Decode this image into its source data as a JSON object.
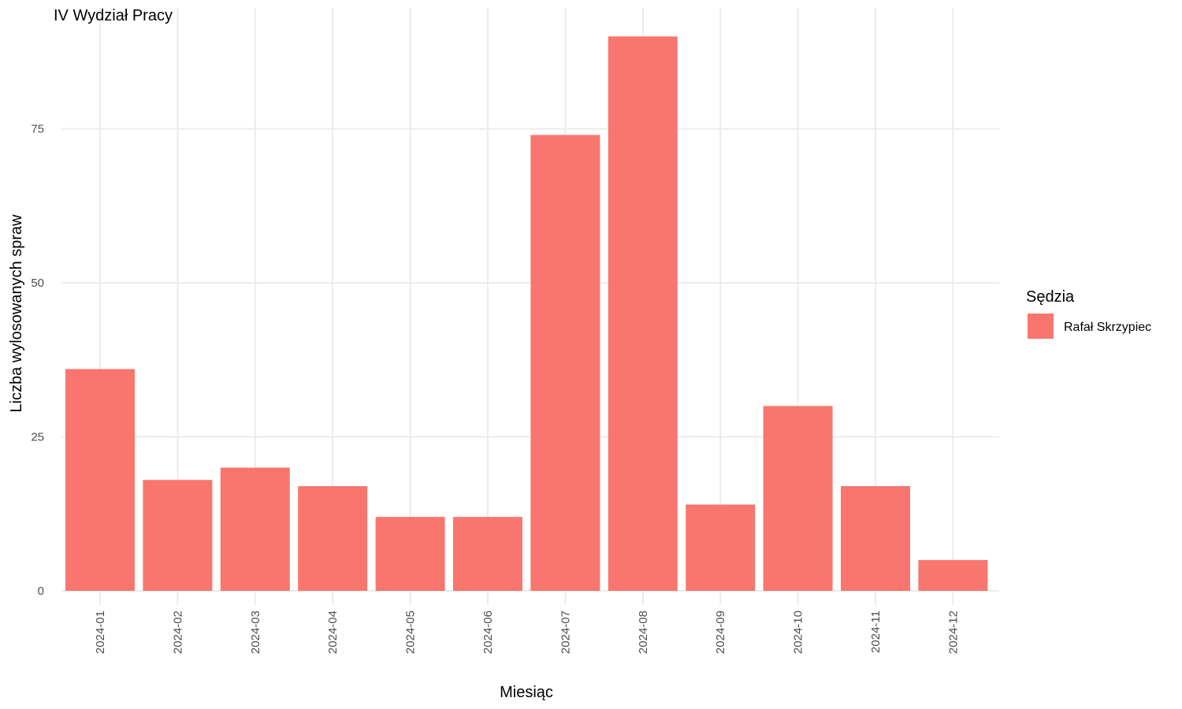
{
  "chart_data": {
    "type": "bar",
    "title": "IV Wydział Pracy",
    "xlabel": "Miesiąc",
    "ylabel": "Liczba wylosowanych spraw",
    "categories": [
      "2024-01",
      "2024-02",
      "2024-03",
      "2024-04",
      "2024-05",
      "2024-06",
      "2024-07",
      "2024-08",
      "2024-09",
      "2024-10",
      "2024-11",
      "2024-12"
    ],
    "series": [
      {
        "name": "Rafał Skrzypiec",
        "values": [
          36,
          18,
          20,
          17,
          12,
          12,
          74,
          90,
          14,
          30,
          17,
          5
        ]
      }
    ],
    "yticks": [
      0,
      25,
      50,
      75
    ],
    "ylim": [
      0,
      90
    ],
    "grid": true,
    "legend": {
      "title": "Sędzia",
      "position": "right"
    },
    "colors": {
      "bar": "#F8766D"
    }
  }
}
